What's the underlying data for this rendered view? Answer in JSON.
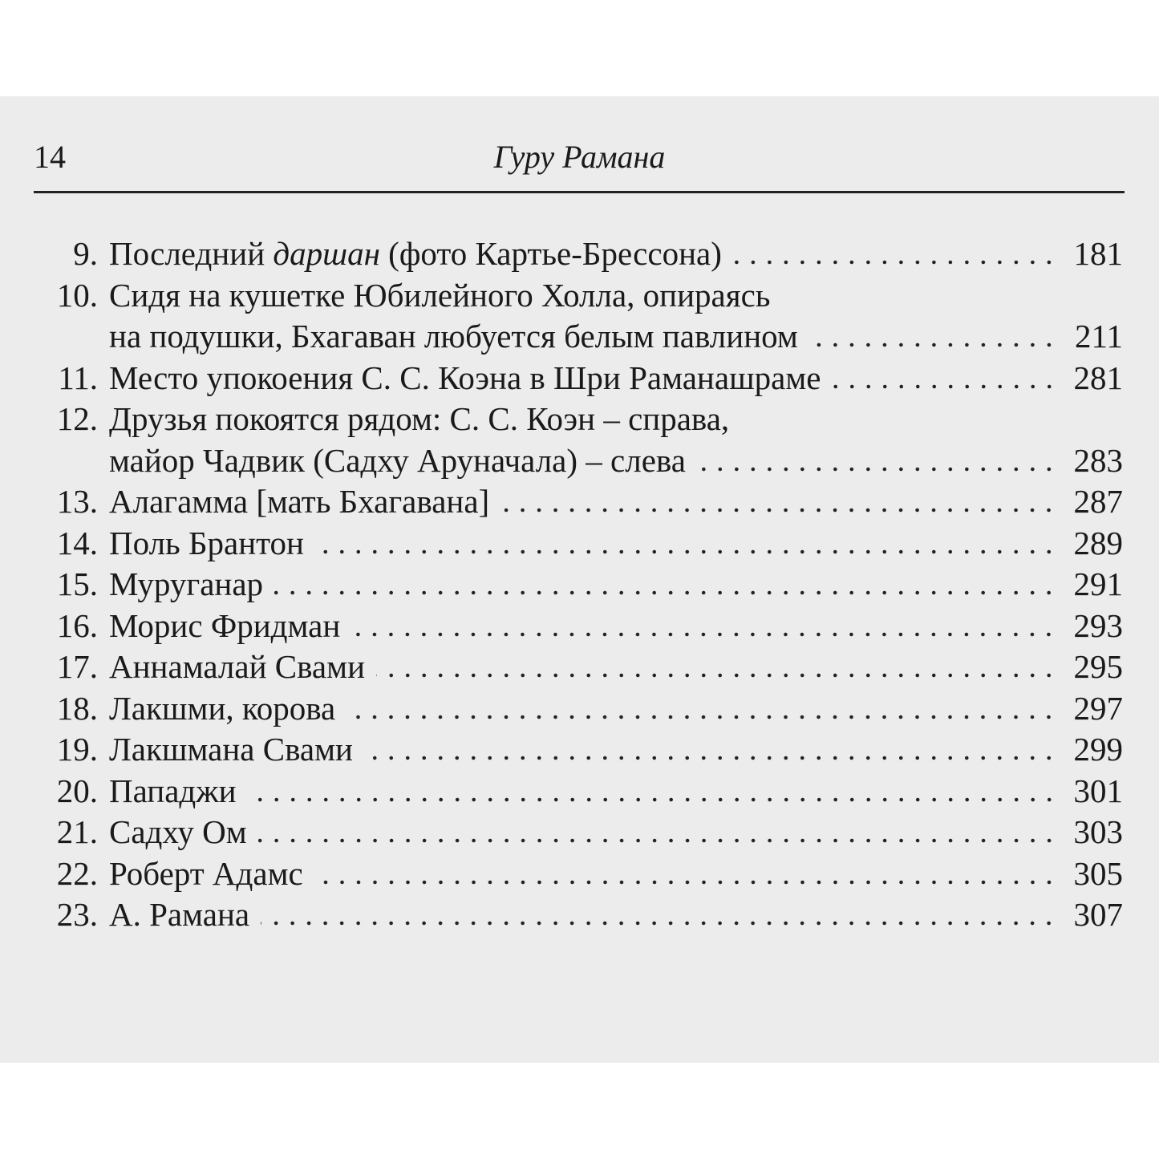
{
  "header": {
    "page_number": "14",
    "title": "Гуру Рамана"
  },
  "entries": [
    {
      "number": "9.",
      "lines": [
        [
          "Последний ",
          {
            "text": "даршан",
            "style": "italic"
          },
          " (фото Картье-Брессона)"
        ]
      ],
      "page": "181"
    },
    {
      "number": "10.",
      "lines": [
        [
          "Сидя на кушетке Юбилейного Холла, опираясь"
        ],
        [
          "на подушки, Бхагаван любуется белым павлином"
        ]
      ],
      "page": "211"
    },
    {
      "number": "11.",
      "lines": [
        [
          "Место  упокоения С. С. Коэна в Шри  Раманашраме"
        ]
      ],
      "page": "281"
    },
    {
      "number": "12.",
      "lines": [
        [
          "Друзья покоятся рядом: С. С. Коэн – справа,"
        ],
        [
          "майор Чадвик (Садху Аруначала) – слева"
        ]
      ],
      "page": "283"
    },
    {
      "number": "13.",
      "lines": [
        [
          "Алагамма [мать Бхагавана]"
        ]
      ],
      "page": "287"
    },
    {
      "number": "14.",
      "lines": [
        [
          "Поль Брантон"
        ]
      ],
      "page": "289"
    },
    {
      "number": "15.",
      "lines": [
        [
          "Муруганар"
        ]
      ],
      "page": "291"
    },
    {
      "number": "16.",
      "lines": [
        [
          "Морис Фридман"
        ]
      ],
      "page": "293"
    },
    {
      "number": "17.",
      "lines": [
        [
          "Аннамалай Свами"
        ]
      ],
      "page": "295"
    },
    {
      "number": "18.",
      "lines": [
        [
          "Лакшми, корова"
        ]
      ],
      "page": "297"
    },
    {
      "number": "19.",
      "lines": [
        [
          "Лакшмана Свами"
        ]
      ],
      "page": "299"
    },
    {
      "number": "20.",
      "lines": [
        [
          "Пападжи"
        ]
      ],
      "page": "301"
    },
    {
      "number": "21.",
      "lines": [
        [
          "Садху Ом"
        ]
      ],
      "page": "303"
    },
    {
      "number": "22.",
      "lines": [
        [
          "Роберт Адамс"
        ]
      ],
      "page": "305"
    },
    {
      "number": "23.",
      "lines": [
        [
          "А. Рамана"
        ]
      ],
      "page": "307"
    }
  ]
}
